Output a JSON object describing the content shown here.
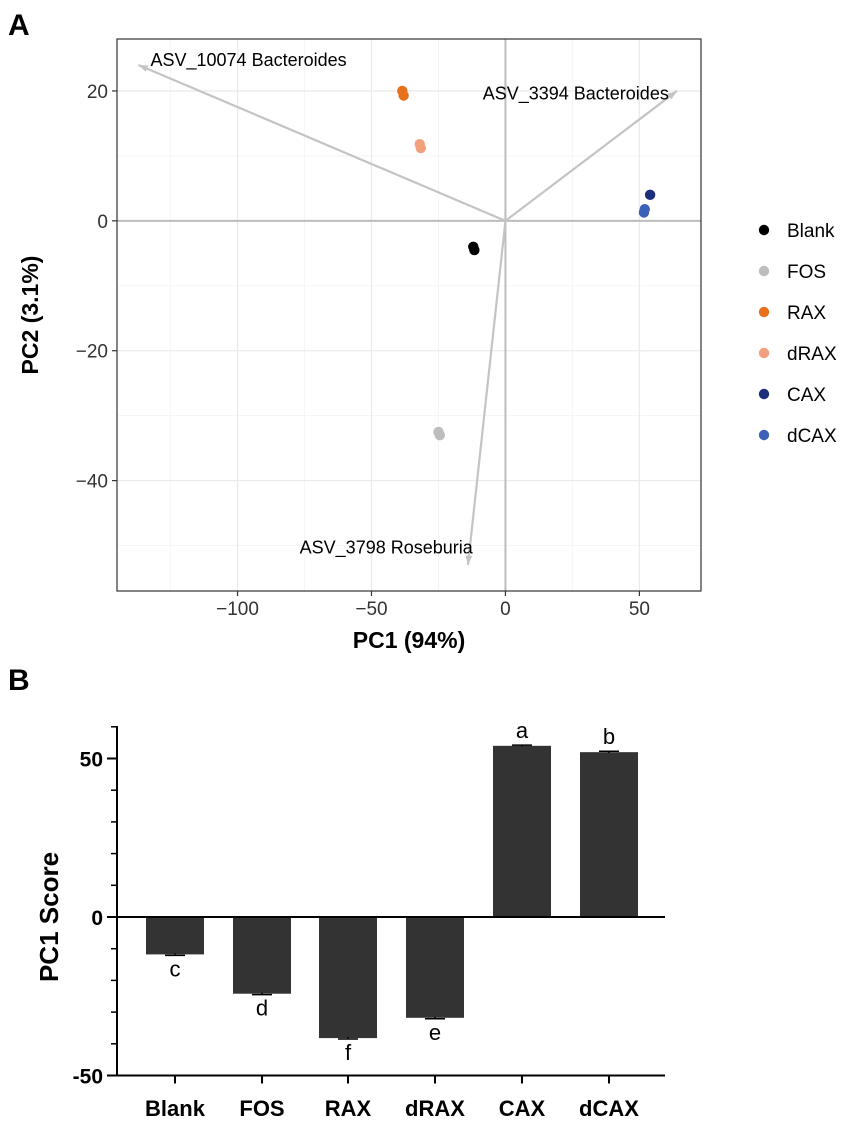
{
  "colors": {
    "background": "#ffffff",
    "grid_major": "#ebebeb",
    "grid_minor": "#f5f5f5",
    "zero_line": "#bdbdbd",
    "arrow": "#c4c4c4",
    "bar": "#333333"
  },
  "chart_data": [
    {
      "panel": "A",
      "type": "scatter",
      "xlabel": "PC1 (94%)",
      "ylabel": "PC2 (3.1%)",
      "xlim": [
        -145,
        73
      ],
      "ylim": [
        -57,
        28
      ],
      "xticks": [
        -100,
        -50,
        0,
        50
      ],
      "yticks": [
        -40,
        -20,
        0,
        20
      ],
      "xtick_labels": [
        "−100",
        "−50",
        "0",
        "50"
      ],
      "ytick_labels": [
        "−40",
        "−20",
        "0",
        "20"
      ],
      "grid": true,
      "legend_position": "right",
      "series": [
        {
          "name": "Blank",
          "color": "#000000",
          "points": [
            [
              -12,
              -4
            ],
            [
              -11.6,
              -4.5
            ]
          ]
        },
        {
          "name": "FOS",
          "color": "#bdbdbd",
          "points": [
            [
              -25,
              -32.5
            ],
            [
              -24.5,
              -33
            ]
          ]
        },
        {
          "name": "RAX",
          "color": "#e8711d",
          "points": [
            [
              -38.5,
              20
            ],
            [
              -38,
              19.3
            ]
          ]
        },
        {
          "name": "dRAX",
          "color": "#f2a07e",
          "points": [
            [
              -32,
              11.8
            ],
            [
              -31.6,
              11.2
            ]
          ]
        },
        {
          "name": "CAX",
          "color": "#1d2e7b",
          "points": [
            [
              54,
              4
            ]
          ]
        },
        {
          "name": "dCAX",
          "color": "#3c61b8",
          "points": [
            [
              52,
              1.8
            ],
            [
              51.7,
              1.3
            ]
          ]
        }
      ],
      "loadings": [
        {
          "label": "ASV_10074 Bacteroides",
          "x": -137,
          "y": 24,
          "label_x": -132.5,
          "label_y": 24.8,
          "anchor": "start"
        },
        {
          "label": "ASV_3394 Bacteroides",
          "x": 64,
          "y": 20,
          "label_x": 61,
          "label_y": 19.6,
          "anchor": "end"
        },
        {
          "label": "ASV_3798 Roseburia",
          "x": -14,
          "y": -53,
          "label_x": -44.5,
          "label_y": -50.3,
          "anchor": "middle"
        }
      ]
    },
    {
      "panel": "B",
      "type": "bar",
      "ylabel": "PC1 Score",
      "xlabel": "",
      "ylim": [
        -50,
        60
      ],
      "yticks": [
        -50,
        0,
        50
      ],
      "ytick_labels": [
        "-50",
        "0",
        "50"
      ],
      "categories": [
        "Blank",
        "FOS",
        "RAX",
        "dRAX",
        "CAX",
        "dCAX"
      ],
      "values": [
        -11.8,
        -24.2,
        -38.2,
        -31.8,
        54,
        52
      ],
      "errors": [
        0.3,
        0.3,
        0.3,
        0.3,
        0.2,
        0.3
      ],
      "significance": [
        "c",
        "d",
        "f",
        "e",
        "a",
        "b"
      ]
    }
  ]
}
